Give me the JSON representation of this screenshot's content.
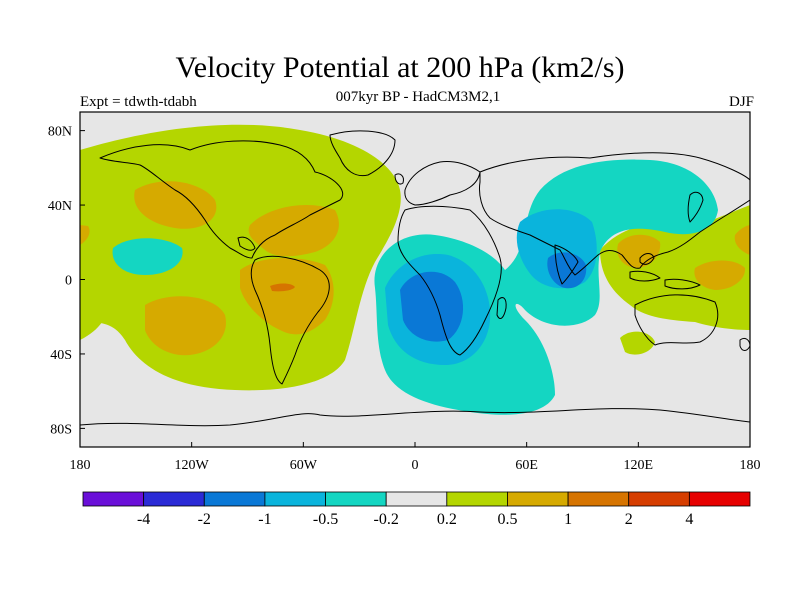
{
  "title": "Velocity Potential at 200 hPa (km2/s)",
  "subtitle": "007kyr BP - HadCM3M2,1",
  "left_label": "Expt = tdwth-tdabh",
  "right_label": "DJF",
  "map": {
    "projection": "cylindrical equidistant",
    "background_color": "#e6e6e6",
    "lon_range": [
      -180,
      180
    ],
    "lat_range": [
      -90,
      90
    ],
    "x_ticks": [
      {
        "value": -180,
        "label": "180"
      },
      {
        "value": -120,
        "label": "120W"
      },
      {
        "value": -60,
        "label": "60W"
      },
      {
        "value": 0,
        "label": "0"
      },
      {
        "value": 60,
        "label": "60E"
      },
      {
        "value": 120,
        "label": "120E"
      },
      {
        "value": 180,
        "label": "180"
      }
    ],
    "y_ticks": [
      {
        "value": 80,
        "label": "80N"
      },
      {
        "value": 40,
        "label": "40N"
      },
      {
        "value": 0,
        "label": "0"
      },
      {
        "value": -40,
        "label": "40S"
      },
      {
        "value": -80,
        "label": "80S"
      }
    ]
  },
  "colorbar": {
    "colors": [
      "#6a0fd8",
      "#2b2bd6",
      "#0a78d6",
      "#0ab4dc",
      "#14d6c2",
      "#e6e6e6",
      "#b4d600",
      "#d6aa00",
      "#d67400",
      "#d63e00",
      "#e60000"
    ],
    "labels": [
      "-4",
      "-2",
      "-1",
      "-0.5",
      "-0.2",
      "0.2",
      "0.5",
      "1",
      "2",
      "4"
    ]
  }
}
